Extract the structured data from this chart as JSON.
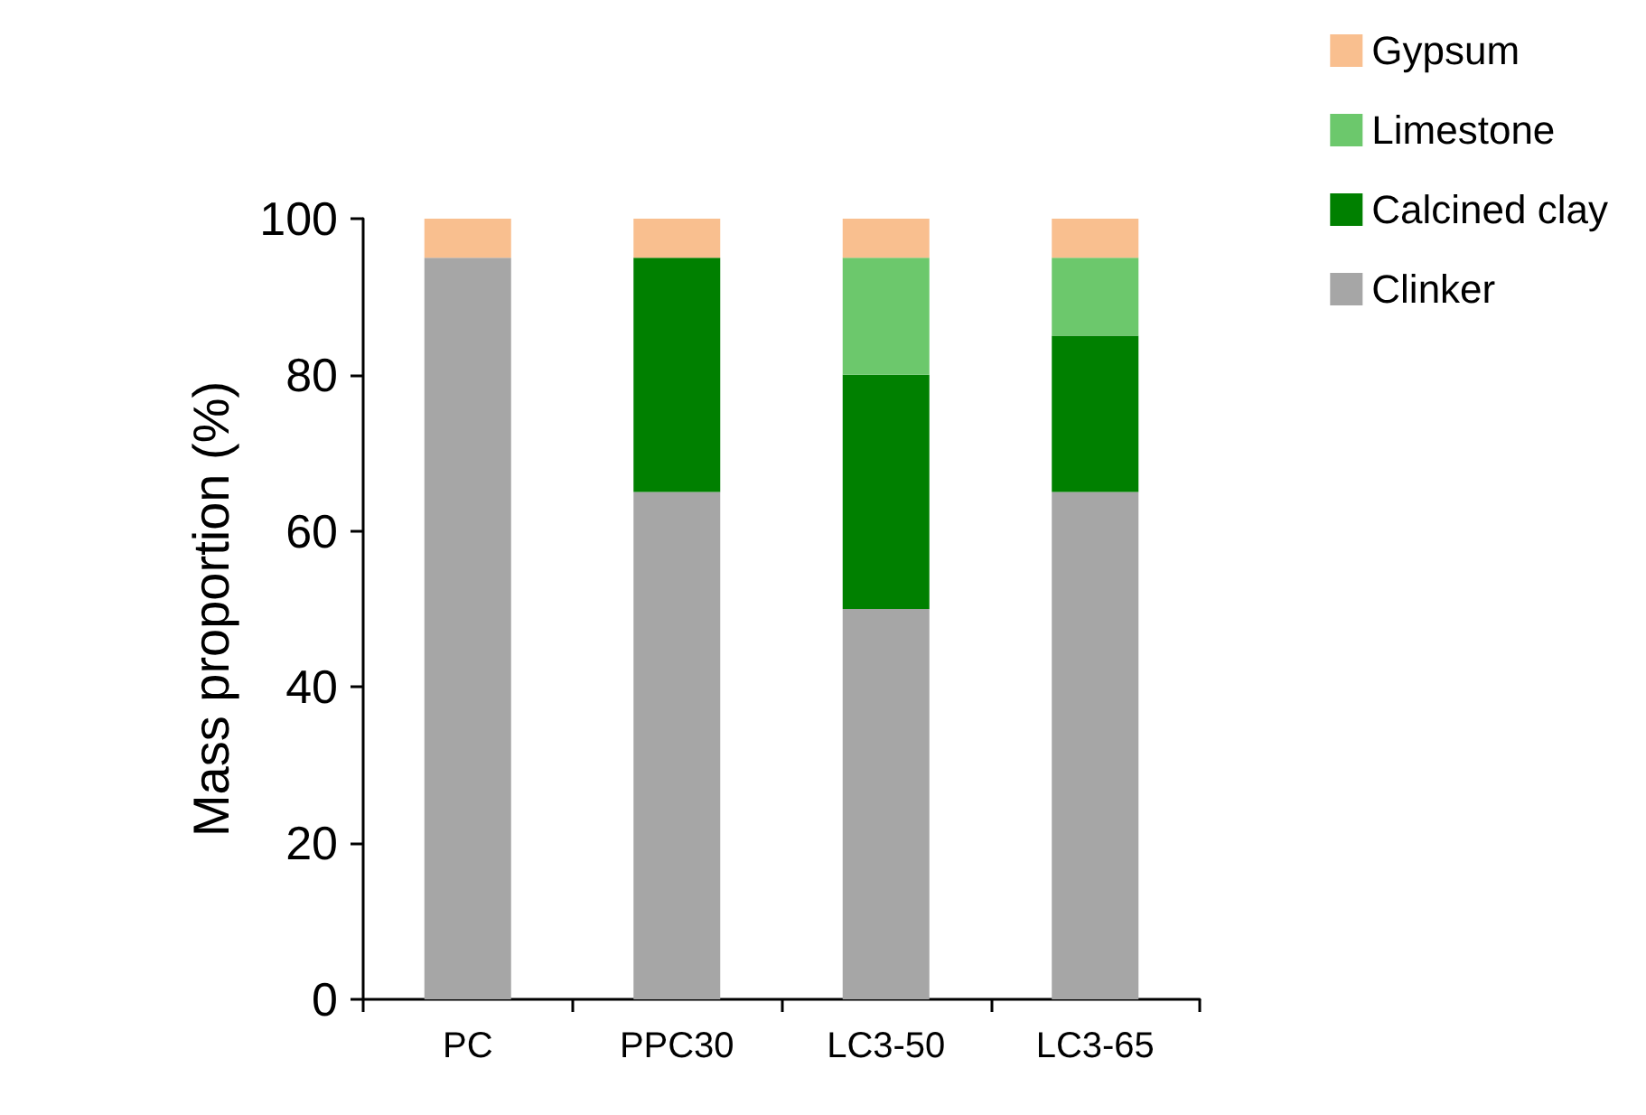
{
  "chart_data": {
    "type": "bar",
    "stacked": true,
    "ylabel": "Mass proportion (%)",
    "categories": [
      "PC",
      "PPC30",
      "LC3-50",
      "LC3-65"
    ],
    "series": [
      {
        "name": "Clinker",
        "color": "#a6a6a6",
        "values": [
          95,
          65,
          50,
          65
        ]
      },
      {
        "name": "Calcined clay",
        "color": "#008000",
        "values": [
          0,
          30,
          30,
          20
        ]
      },
      {
        "name": "Limestone",
        "color": "#6cc86c",
        "values": [
          0,
          0,
          15,
          10
        ]
      },
      {
        "name": "Gypsum",
        "color": "#f9bf8f",
        "values": [
          5,
          5,
          5,
          5
        ]
      }
    ],
    "ylim": [
      0,
      100
    ],
    "yticks": [
      0,
      20,
      40,
      60,
      80,
      100
    ],
    "grid": false,
    "legend": "top right"
  }
}
